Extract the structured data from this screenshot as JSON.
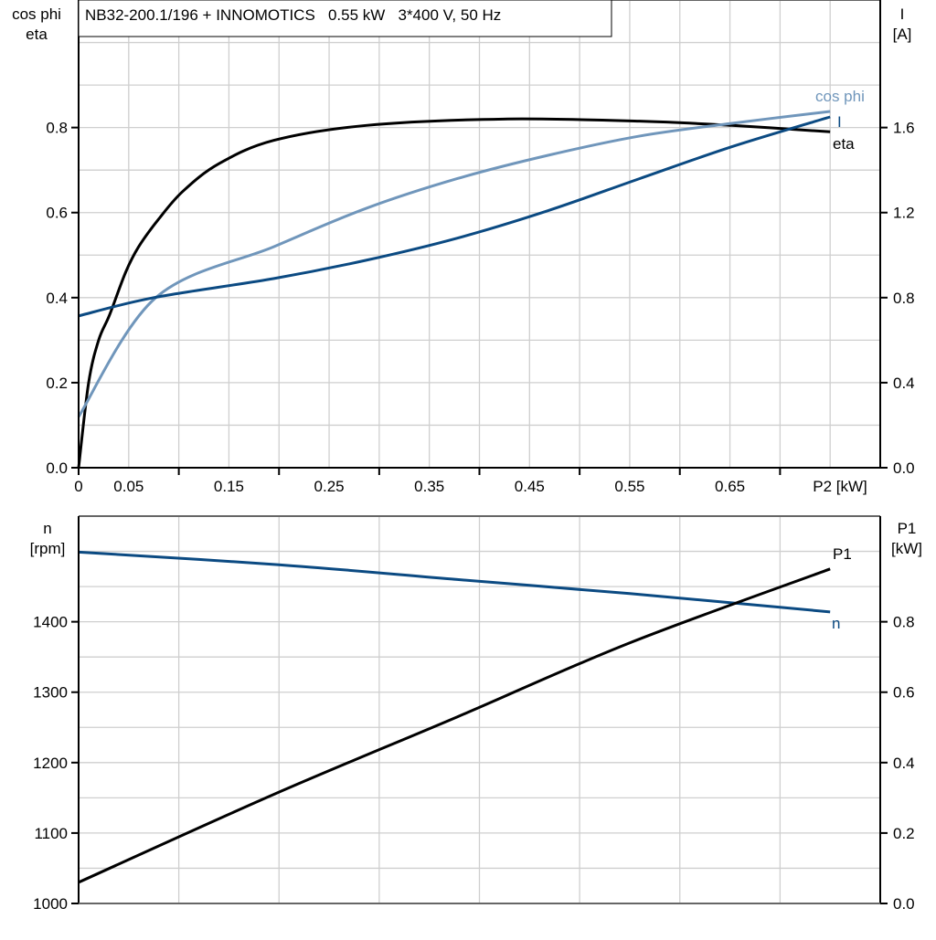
{
  "chart_data": [
    {
      "type": "line",
      "title": "NB32-200.1/196 + INNOMOTICS   0.55 kW   3*400 V, 50 Hz",
      "xlabel": "P2 [kW]",
      "ylabel_left": [
        "cos phi",
        "eta"
      ],
      "ylabel_right": [
        "I",
        "[A]"
      ],
      "xlim": [
        0,
        0.8
      ],
      "ylim_left": [
        0,
        1.1
      ],
      "ylim_right": [
        0,
        2.2
      ],
      "x_ticks": [
        0,
        0.1,
        0.2,
        0.3,
        0.4,
        0.5,
        0.6,
        0.7
      ],
      "x_tick_labels": [
        "0",
        "0.05",
        "0.15",
        "0.25",
        "0.35",
        "0.45",
        "0.55",
        "0.65"
      ],
      "x_tick_label_values": [
        0,
        0.05,
        0.15,
        0.25,
        0.35,
        0.45,
        0.55,
        0.65
      ],
      "y_left_ticks": [
        "0.0",
        "0.2",
        "0.4",
        "0.6",
        "0.8"
      ],
      "y_right_ticks": [
        "0.0",
        "0.4",
        "0.8",
        "1.2",
        "1.6"
      ],
      "grid": true,
      "series": [
        {
          "name": "eta",
          "axis": "left",
          "color": "#000000",
          "x": [
            0,
            0.01,
            0.02,
            0.031,
            0.047,
            0.06,
            0.08,
            0.104,
            0.14,
            0.195,
            0.287,
            0.424,
            0.56,
            0.652,
            0.75
          ],
          "y": [
            0,
            0.2,
            0.3,
            0.36,
            0.46,
            0.52,
            0.585,
            0.65,
            0.715,
            0.77,
            0.805,
            0.82,
            0.815,
            0.805,
            0.79
          ]
        },
        {
          "name": "cos phi",
          "axis": "left",
          "color": "#7096bb",
          "x": [
            0,
            0.077,
            0.195,
            0.287,
            0.378,
            0.469,
            0.56,
            0.652,
            0.75
          ],
          "y": [
            0.12,
            0.4,
            0.52,
            0.61,
            0.68,
            0.735,
            0.78,
            0.81,
            0.838
          ]
        },
        {
          "name": "I",
          "axis": "right",
          "color": "#0b4a82",
          "x": [
            0,
            0.075,
            0.195,
            0.287,
            0.378,
            0.469,
            0.56,
            0.652,
            0.75
          ],
          "y": [
            0.714,
            0.8,
            0.89,
            0.976,
            1.08,
            1.21,
            1.36,
            1.51,
            1.65
          ]
        }
      ]
    },
    {
      "type": "line",
      "ylabel_left": [
        "n",
        "[rpm]"
      ],
      "ylabel_right": [
        "P1",
        "[kW]"
      ],
      "xlim": [
        0,
        0.8
      ],
      "ylim_left": [
        1000,
        1550
      ],
      "ylim_right": [
        0,
        1.1
      ],
      "y_left_ticks": [
        "1000",
        "1100",
        "1200",
        "1300",
        "1400"
      ],
      "y_right_ticks": [
        "0.0",
        "0.2",
        "0.4",
        "0.6",
        "0.8"
      ],
      "grid": true,
      "series": [
        {
          "name": "n",
          "axis": "left",
          "color": "#0b4a82",
          "x": [
            0,
            0.2,
            0.378,
            0.55,
            0.75
          ],
          "y": [
            1499,
            1481,
            1460,
            1440,
            1414
          ]
        },
        {
          "name": "P1",
          "axis": "right",
          "color": "#000000",
          "x": [
            0,
            0.195,
            0.378,
            0.55,
            0.75
          ],
          "y": [
            0.06,
            0.31,
            0.53,
            0.74,
            0.95
          ]
        }
      ]
    }
  ]
}
